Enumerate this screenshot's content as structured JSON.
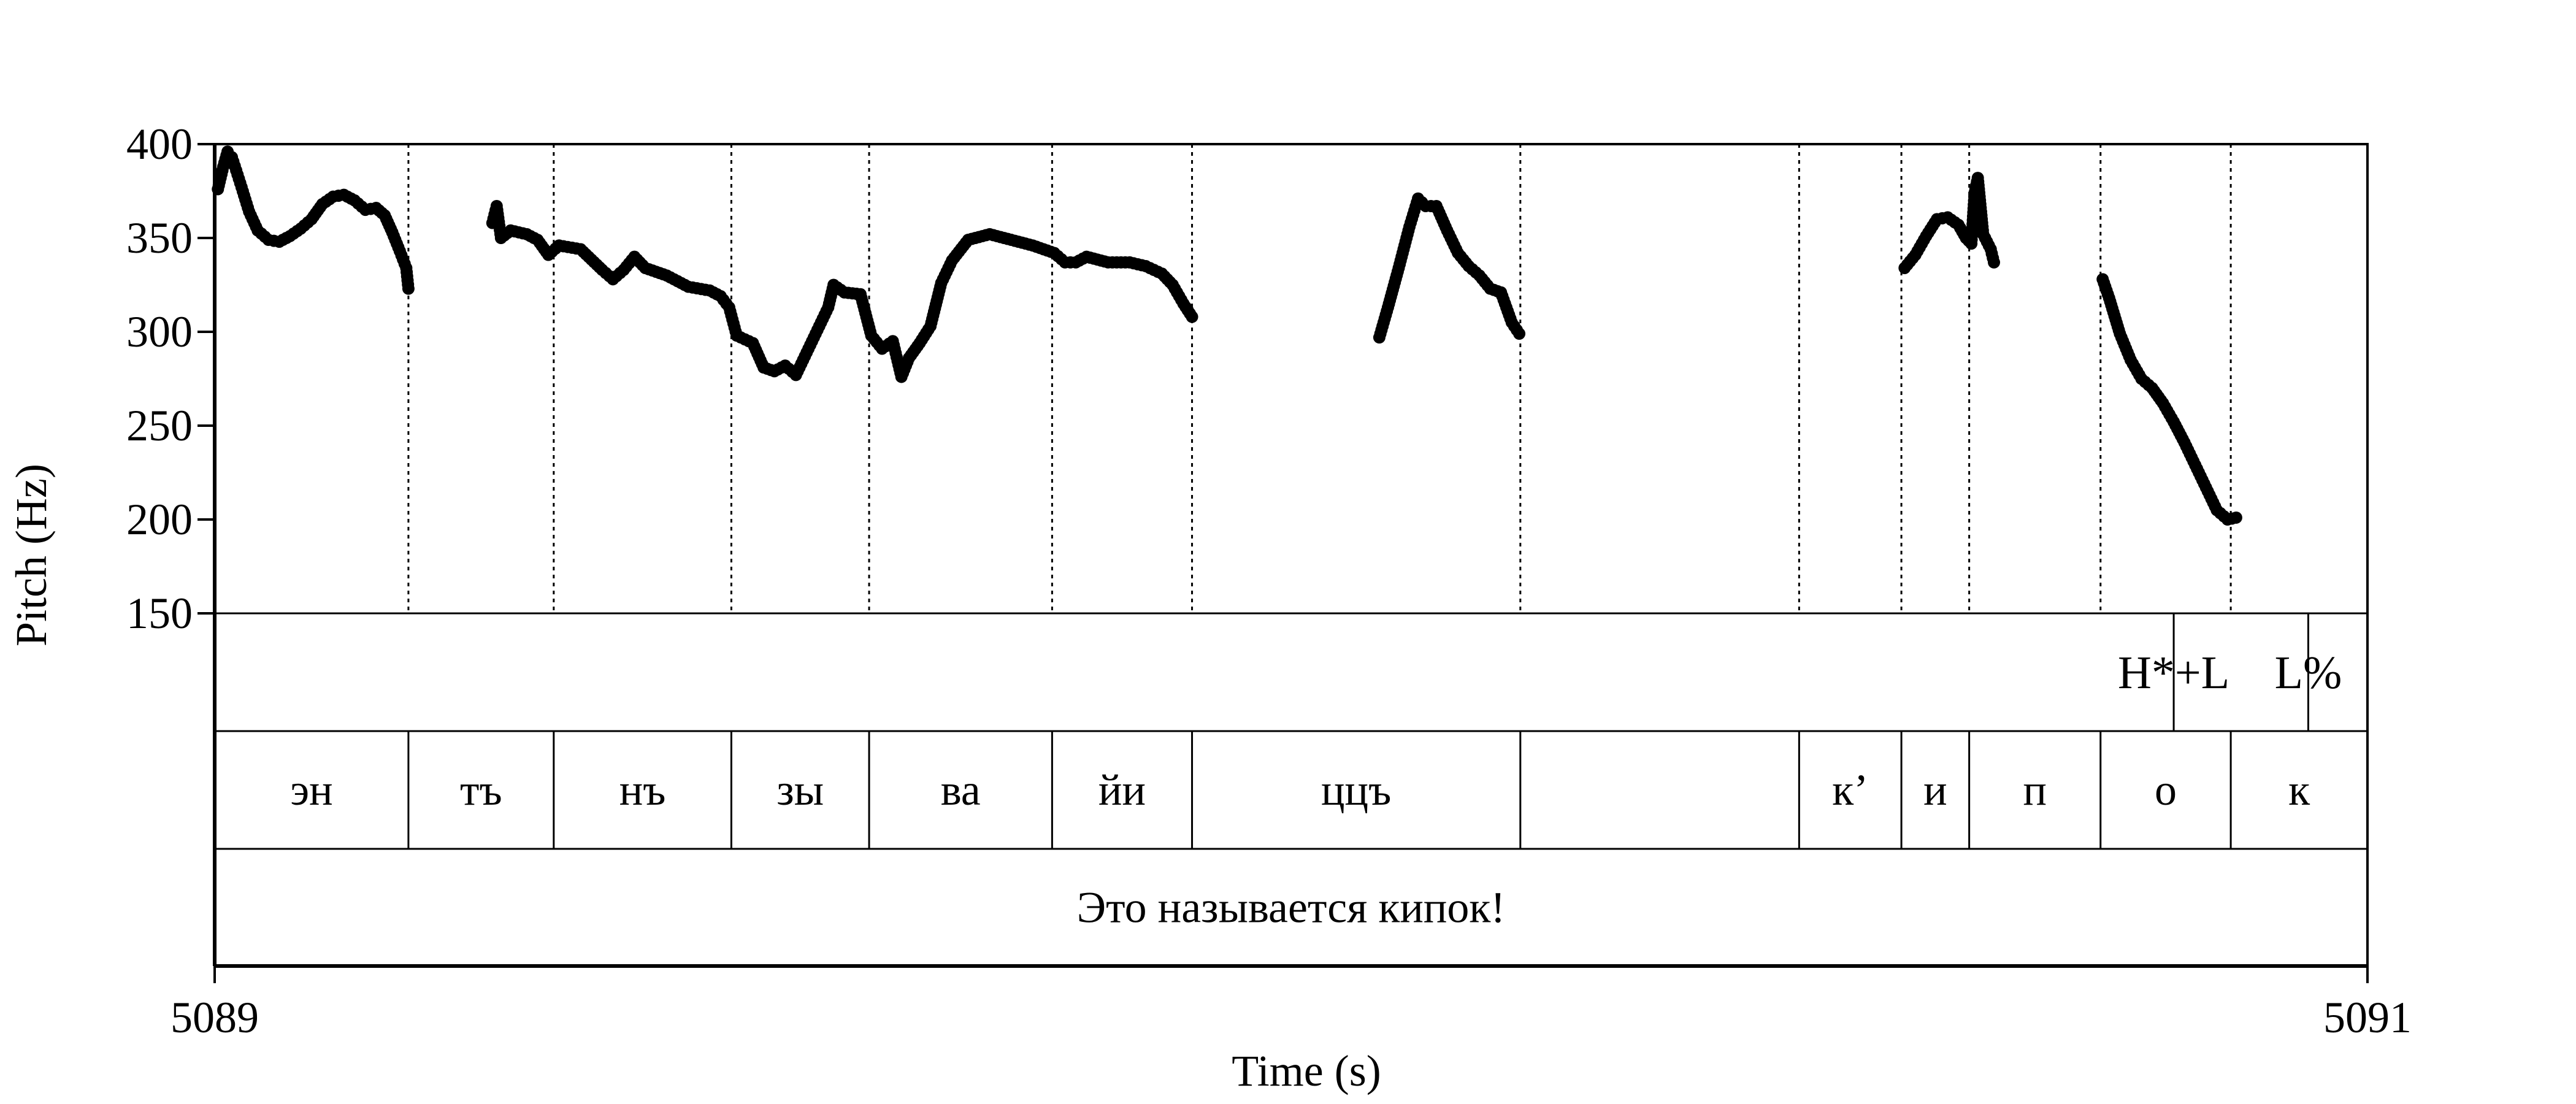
{
  "chart_data": {
    "type": "scatter",
    "xlabel": "Time (s)",
    "ylabel": "Pitch (Hz)",
    "xlim": [
      5089,
      5091
    ],
    "ylim": [
      150,
      400
    ],
    "x_ticks": [
      "5089",
      "5091"
    ],
    "y_ticks": [
      400,
      350,
      300,
      250,
      200,
      150
    ],
    "boundaries": [
      5089.18,
      5089.315,
      5089.48,
      5089.608,
      5089.778,
      5089.908,
      5090.213,
      5090.472,
      5090.567,
      5090.63,
      5090.752,
      5090.873
    ],
    "tones": [
      {
        "label": "H*+L",
        "x": 5090.82
      },
      {
        "label": "L%",
        "x": 5090.945
      }
    ],
    "syllables": [
      {
        "label": "эн",
        "start": 5089.0,
        "end": 5089.18
      },
      {
        "label": "тъ",
        "start": 5089.18,
        "end": 5089.315
      },
      {
        "label": "нъ",
        "start": 5089.315,
        "end": 5089.48
      },
      {
        "label": "зы",
        "start": 5089.48,
        "end": 5089.608
      },
      {
        "label": "ва",
        "start": 5089.608,
        "end": 5089.778
      },
      {
        "label": "йи",
        "start": 5089.778,
        "end": 5089.908
      },
      {
        "label": "ццъ",
        "start": 5089.908,
        "end": 5090.213
      },
      {
        "label": "",
        "start": 5090.213,
        "end": 5090.472
      },
      {
        "label": "к’",
        "start": 5090.472,
        "end": 5090.567
      },
      {
        "label": "и",
        "start": 5090.567,
        "end": 5090.63
      },
      {
        "label": "п",
        "start": 5090.63,
        "end": 5090.752
      },
      {
        "label": "о",
        "start": 5090.752,
        "end": 5090.873
      },
      {
        "label": "к",
        "start": 5090.873,
        "end": 5091.0
      }
    ],
    "sentence": "Это называется кипок!",
    "series": [
      {
        "segments": [
          [
            [
              5089.003,
              376
            ],
            [
              5089.008,
              388
            ],
            [
              5089.012,
              396
            ],
            [
              5089.016,
              393
            ],
            [
              5089.02,
              386
            ],
            [
              5089.025,
              377
            ],
            [
              5089.032,
              364
            ],
            [
              5089.04,
              354
            ],
            [
              5089.05,
              349
            ],
            [
              5089.06,
              348
            ],
            [
              5089.07,
              351
            ],
            [
              5089.08,
              355
            ],
            [
              5089.09,
              360
            ],
            [
              5089.1,
              368
            ],
            [
              5089.11,
              372
            ],
            [
              5089.12,
              373
            ],
            [
              5089.13,
              370
            ],
            [
              5089.14,
              365
            ],
            [
              5089.15,
              366
            ],
            [
              5089.158,
              362
            ],
            [
              5089.165,
              353
            ],
            [
              5089.172,
              343
            ],
            [
              5089.178,
              334
            ],
            [
              5089.18,
              323
            ]
          ],
          [
            [
              5089.258,
              358
            ],
            [
              5089.262,
              367
            ],
            [
              5089.266,
              350
            ],
            [
              5089.275,
              354
            ],
            [
              5089.29,
              352
            ],
            [
              5089.3,
              349
            ],
            [
              5089.31,
              341
            ],
            [
              5089.32,
              346
            ],
            [
              5089.34,
              344
            ],
            [
              5089.36,
              333
            ],
            [
              5089.37,
              328
            ],
            [
              5089.38,
              333
            ],
            [
              5089.39,
              340
            ],
            [
              5089.4,
              334
            ],
            [
              5089.42,
              330
            ],
            [
              5089.44,
              324
            ],
            [
              5089.46,
              322
            ],
            [
              5089.47,
              319
            ],
            [
              5089.478,
              313
            ],
            [
              5089.485,
              298
            ],
            [
              5089.5,
              294
            ],
            [
              5089.51,
              281
            ],
            [
              5089.52,
              279
            ],
            [
              5089.53,
              282
            ],
            [
              5089.54,
              277
            ],
            [
              5089.55,
              289
            ],
            [
              5089.56,
              301
            ],
            [
              5089.57,
              313
            ],
            [
              5089.575,
              325
            ],
            [
              5089.585,
              321
            ],
            [
              5089.6,
              320
            ],
            [
              5089.61,
              298
            ],
            [
              5089.62,
              291
            ],
            [
              5089.63,
              295
            ],
            [
              5089.638,
              276
            ],
            [
              5089.645,
              286
            ],
            [
              5089.655,
              294
            ],
            [
              5089.665,
              303
            ],
            [
              5089.675,
              326
            ],
            [
              5089.685,
              338
            ],
            [
              5089.7,
              349
            ],
            [
              5089.72,
              352
            ],
            [
              5089.74,
              349
            ],
            [
              5089.76,
              346
            ],
            [
              5089.78,
              342
            ],
            [
              5089.79,
              337
            ],
            [
              5089.8,
              337
            ],
            [
              5089.81,
              340
            ],
            [
              5089.83,
              337
            ],
            [
              5089.85,
              337
            ],
            [
              5089.865,
              335
            ],
            [
              5089.88,
              331
            ],
            [
              5089.89,
              325
            ],
            [
              5089.9,
              315
            ],
            [
              5089.908,
              308
            ]
          ],
          [
            [
              5090.082,
              297
            ],
            [
              5090.09,
              313
            ],
            [
              5090.1,
              334
            ],
            [
              5090.11,
              356
            ],
            [
              5090.118,
              371
            ],
            [
              5090.125,
              367
            ],
            [
              5090.135,
              367
            ],
            [
              5090.145,
              354
            ],
            [
              5090.155,
              342
            ],
            [
              5090.165,
              335
            ],
            [
              5090.175,
              330
            ],
            [
              5090.185,
              323
            ],
            [
              5090.195,
              321
            ],
            [
              5090.205,
              305
            ],
            [
              5090.212,
              299
            ]
          ],
          [
            [
              5090.57,
              334
            ],
            [
              5090.58,
              341
            ],
            [
              5090.59,
              351
            ],
            [
              5090.6,
              360
            ],
            [
              5090.61,
              361
            ],
            [
              5090.62,
              357
            ],
            [
              5090.627,
              350
            ],
            [
              5090.632,
              347
            ],
            [
              5090.635,
              374
            ],
            [
              5090.638,
              382
            ],
            [
              5090.643,
              352
            ],
            [
              5090.65,
              344
            ],
            [
              5090.653,
              337
            ]
          ],
          [
            [
              5090.754,
              328
            ],
            [
              5090.76,
              318
            ],
            [
              5090.77,
              299
            ],
            [
              5090.78,
              285
            ],
            [
              5090.79,
              275
            ],
            [
              5090.8,
              270
            ],
            [
              5090.81,
              262
            ],
            [
              5090.82,
              252
            ],
            [
              5090.83,
              241
            ],
            [
              5090.84,
              229
            ],
            [
              5090.85,
              217
            ],
            [
              5090.86,
              205
            ],
            [
              5090.87,
              200
            ],
            [
              5090.878,
              201
            ]
          ]
        ]
      }
    ]
  }
}
